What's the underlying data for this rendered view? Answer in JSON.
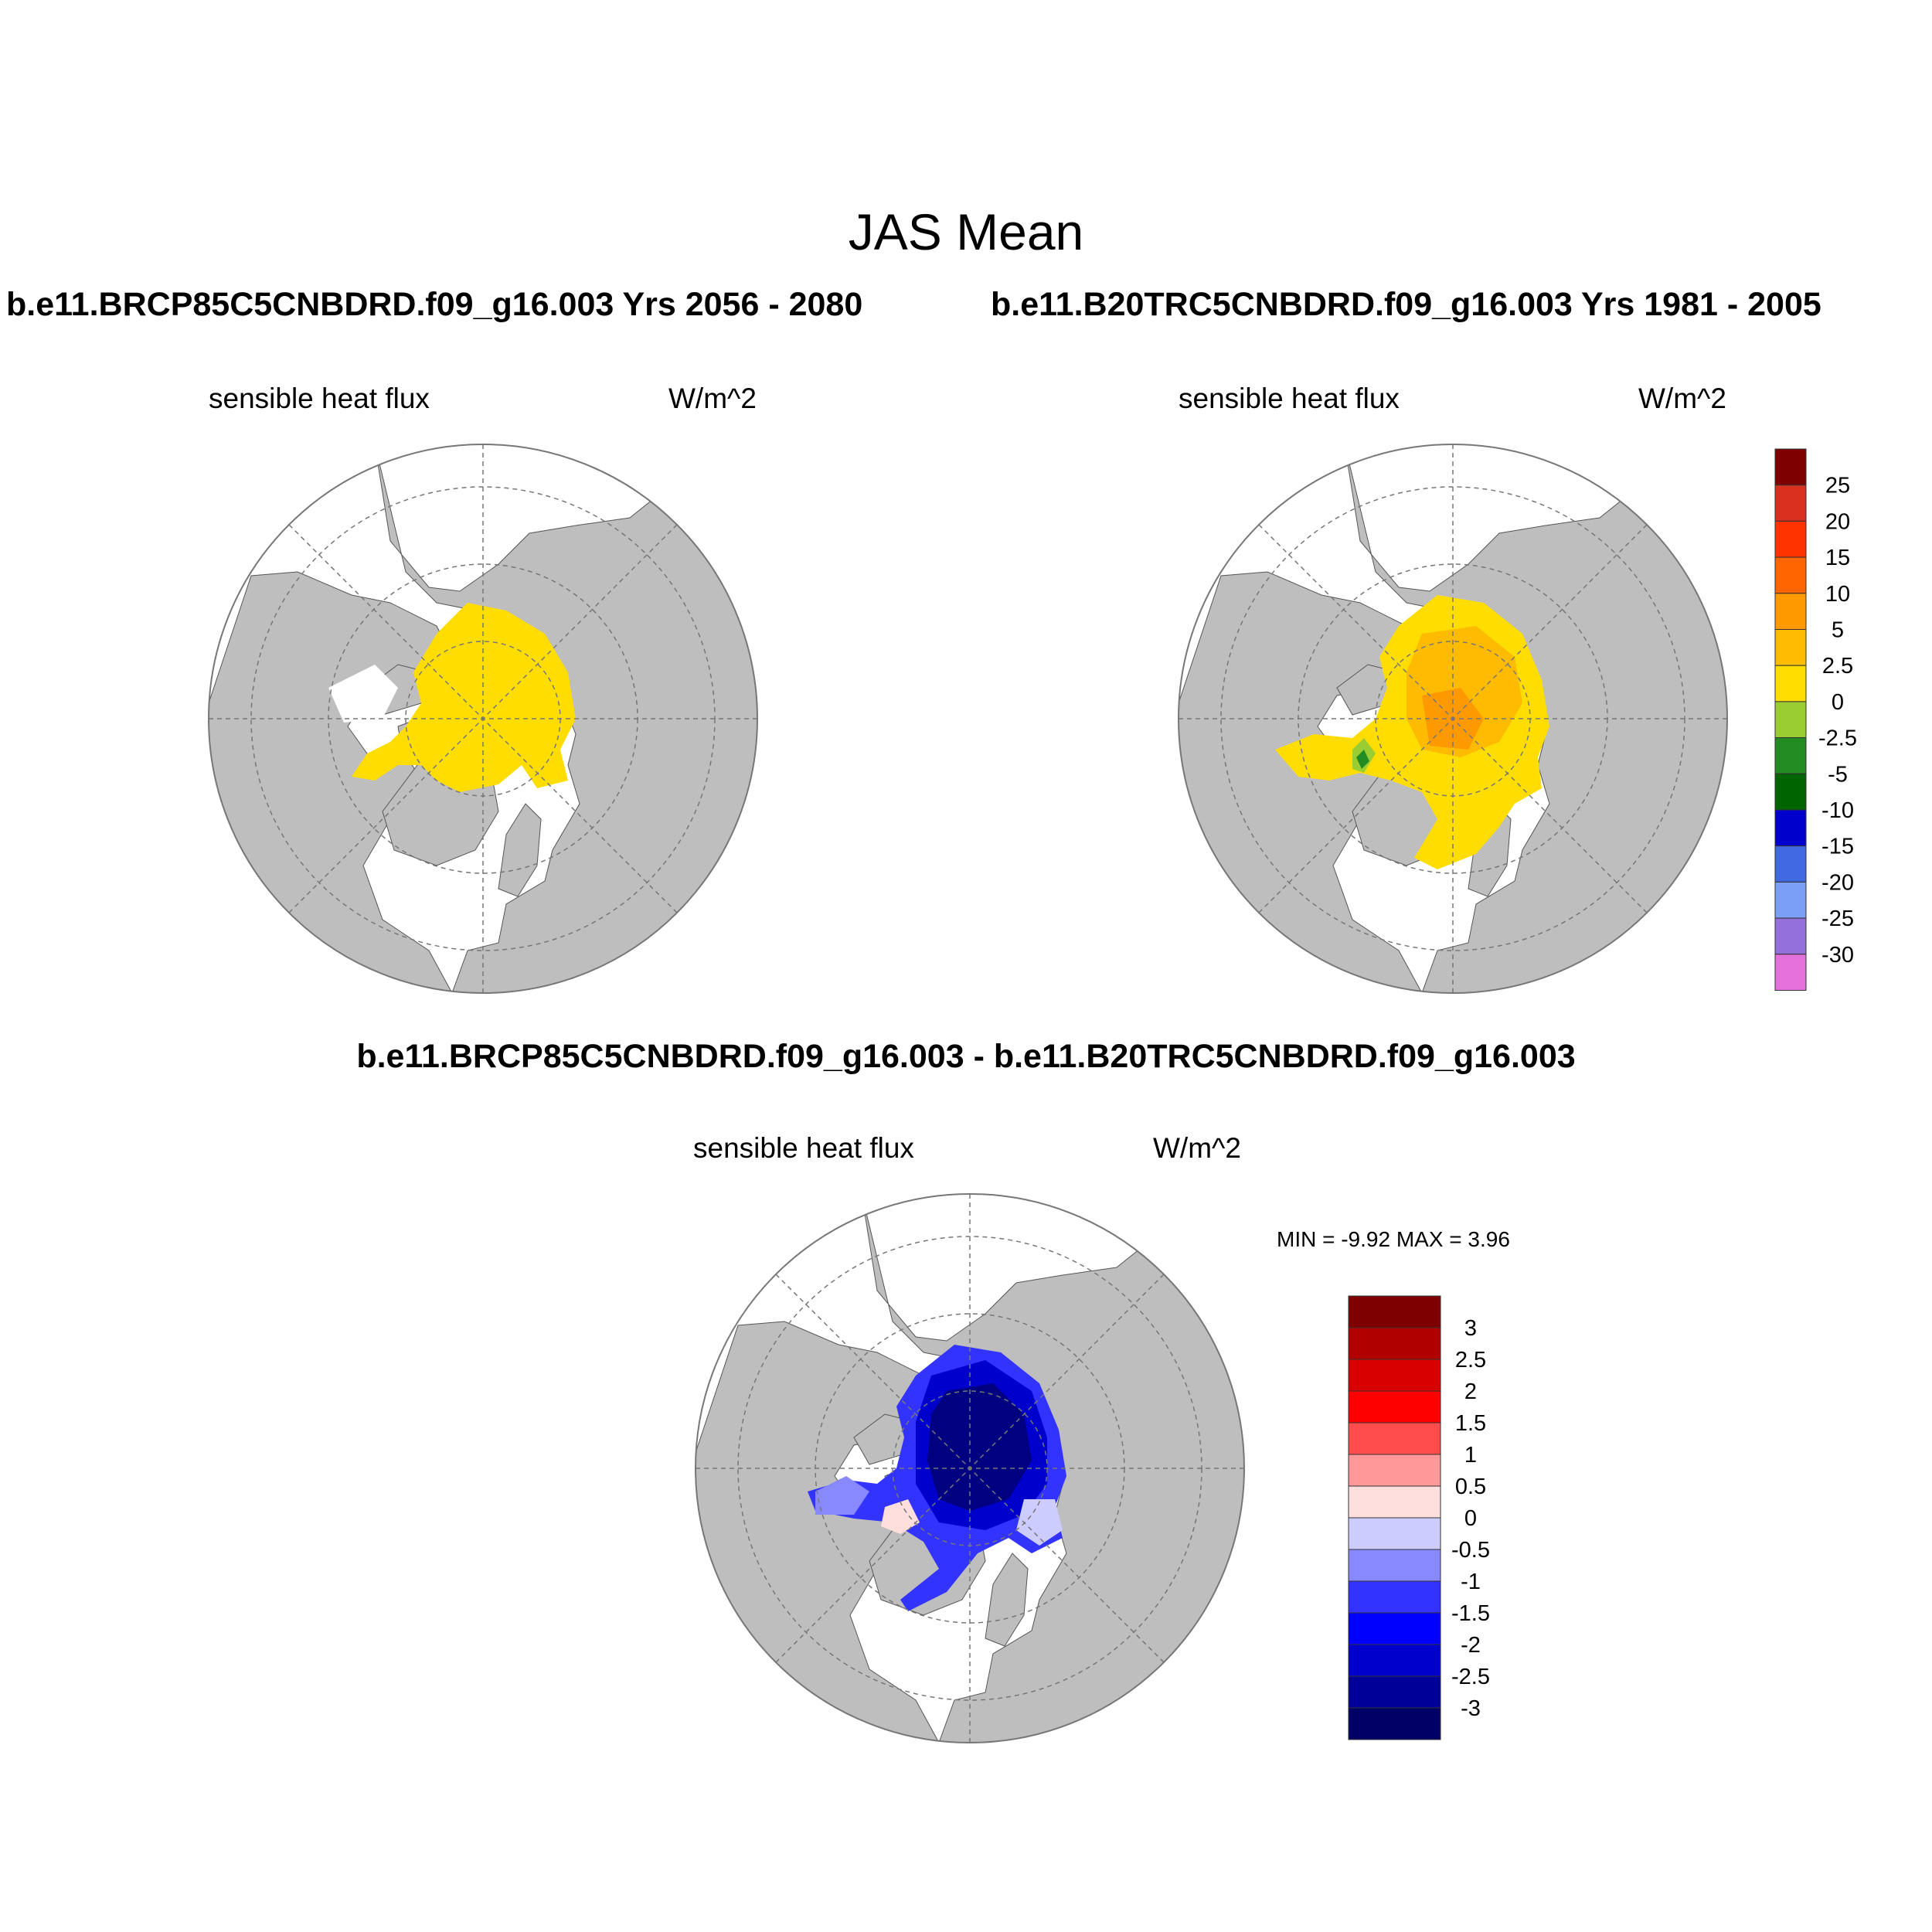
{
  "title": "JAS Mean",
  "panels": [
    {
      "id": "future",
      "title": "b.e11.BRCP85C5CNBDRD.f09_g16.003  Yrs 2056 - 2080",
      "variable": "sensible heat flux",
      "units": "W/m^2"
    },
    {
      "id": "historical",
      "title": "b.e11.B20TRC5CNBDRD.f09_g16.003  Yrs 1981 - 2005",
      "variable": "sensible heat flux",
      "units": "W/m^2"
    },
    {
      "id": "difference",
      "title": "b.e11.BRCP85C5CNBDRD.f09_g16.003 - b.e11.B20TRC5CNBDRD.f09_g16.003",
      "variable": "sensible heat flux",
      "units": "W/m^2",
      "min_max": "MIN =  -9.92 MAX =   3.96"
    }
  ],
  "colorbar_main": {
    "labels": [
      "25",
      "20",
      "15",
      "10",
      "5",
      "2.5",
      "0",
      "-2.5",
      "-5",
      "-10",
      "-15",
      "-20",
      "-25",
      "-30"
    ],
    "colors": [
      "#7f0000",
      "#d7301f",
      "#ff3300",
      "#ff6600",
      "#ff9900",
      "#ffbb00",
      "#ffdd00",
      "#9acd32",
      "#228b22",
      "#006400",
      "#0000cd",
      "#4169e1",
      "#7b9ff5",
      "#9370db",
      "#e370db"
    ]
  },
  "colorbar_diff": {
    "labels": [
      "3",
      "2.5",
      "2",
      "1.5",
      "1",
      "0.5",
      "0",
      "-0.5",
      "-1",
      "-1.5",
      "-2",
      "-2.5",
      "-3"
    ],
    "colors": [
      "#7f0000",
      "#b00000",
      "#d80000",
      "#ff0000",
      "#ff4c4c",
      "#ff9999",
      "#ffdede",
      "#ccccff",
      "#8888ff",
      "#3333ff",
      "#0000ff",
      "#0000cc",
      "#000099",
      "#000066"
    ]
  },
  "map_colors": {
    "land": "#bebebe",
    "ocean": "#ffffff",
    "future_field": "#ffdd00",
    "historical_field": "#ffbb00",
    "historical_warm": "#ff9900",
    "historical_cool": "#9acd32",
    "diff_core": "#000080",
    "diff_mid": "#0000cc",
    "diff_edge": "#3333ff",
    "diff_light": "#ccccff",
    "diff_pos": "#ffdede"
  }
}
